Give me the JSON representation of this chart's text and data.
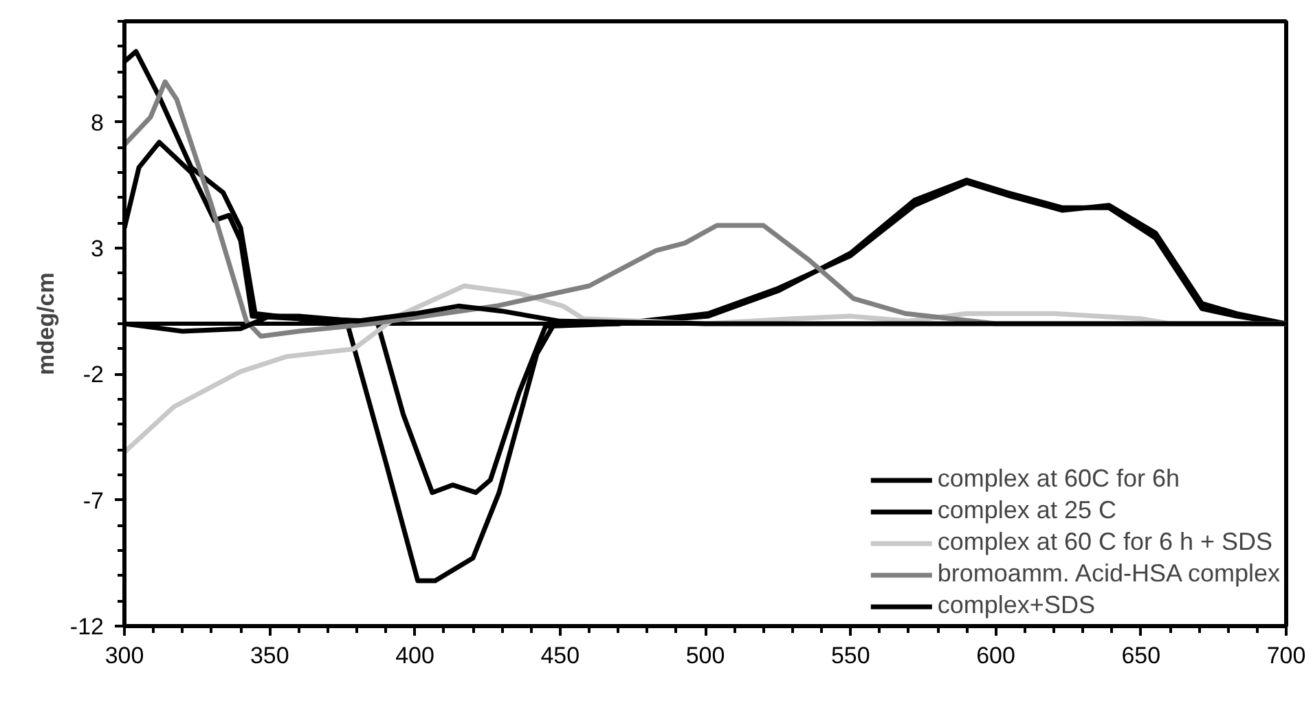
{
  "chart_data": {
    "type": "line",
    "ylabel": "mdeg/cm",
    "xlim": [
      300,
      700
    ],
    "ylim": [
      -12,
      12
    ],
    "xticks": [
      300,
      350,
      400,
      450,
      500,
      550,
      600,
      650,
      700
    ],
    "yticks": [
      8,
      3,
      -2,
      -7,
      -12
    ],
    "grid": false,
    "legend": "bottom right",
    "marker": "none",
    "line_style": "solid",
    "series": [
      {
        "name": "complex at 60C for 6h",
        "color": "#000000",
        "x": [
          300,
          304,
          312,
          323,
          334,
          340,
          345,
          360,
          377,
          390,
          401,
          407,
          420,
          429,
          442,
          448,
          470,
          501,
          525,
          550,
          572,
          590,
          604,
          623,
          639,
          655,
          671,
          683,
          700
        ],
        "values": [
          10.4,
          10.8,
          9.0,
          6.2,
          5.2,
          3.8,
          0.4,
          0.2,
          -0.1,
          -5.5,
          -10.2,
          -10.2,
          -9.3,
          -6.7,
          -1.2,
          0,
          0,
          0.3,
          1.3,
          2.8,
          4.9,
          5.7,
          5.2,
          4.6,
          4.6,
          3.4,
          0.6,
          0.3,
          0
        ]
      },
      {
        "name": "complex at 25 C",
        "color": "#000000",
        "x": [
          300,
          305,
          312,
          323,
          331,
          336,
          340,
          344,
          360,
          387,
          396,
          406,
          413,
          421,
          426,
          436,
          445,
          470,
          501,
          525,
          550,
          572,
          590,
          604,
          623,
          639,
          655,
          671,
          683,
          700
        ],
        "values": [
          3.8,
          6.2,
          7.2,
          6.0,
          4.1,
          4.3,
          3.3,
          0.3,
          0.2,
          0.1,
          -3.6,
          -6.7,
          -6.4,
          -6.7,
          -6.2,
          -2.7,
          -0.1,
          0,
          0.4,
          1.4,
          2.7,
          4.7,
          5.6,
          5.1,
          4.5,
          4.7,
          3.6,
          0.8,
          0.4,
          0
        ]
      },
      {
        "name": "complex at 60 C for 6 h + SDS",
        "color": "#c8c8c8",
        "x": [
          300,
          317,
          340,
          356,
          379,
          394,
          417,
          436,
          451,
          458,
          500,
          530,
          550,
          570,
          590,
          620,
          650,
          660,
          700
        ],
        "values": [
          -5.1,
          -3.3,
          -1.9,
          -1.3,
          -1.0,
          0.3,
          1.5,
          1.2,
          0.7,
          0.2,
          0,
          0.2,
          0.3,
          0.1,
          0.4,
          0.4,
          0.2,
          0,
          0
        ]
      },
      {
        "name": "bromoamm. Acid-HSA complex",
        "color": "#808080",
        "x": [
          300,
          309,
          314,
          318,
          330,
          342,
          347,
          360,
          385,
          428,
          460,
          483,
          493,
          504,
          520,
          536,
          551,
          569,
          600,
          700
        ],
        "values": [
          7.1,
          8.2,
          9.6,
          8.9,
          4.7,
          0.1,
          -0.5,
          -0.3,
          0,
          0.7,
          1.5,
          2.9,
          3.2,
          3.9,
          3.9,
          2.5,
          1.0,
          0.4,
          0,
          0
        ]
      },
      {
        "name": "complex+SDS",
        "color": "#000000",
        "x": [
          300,
          320,
          340,
          350,
          360,
          380,
          400,
          415,
          430,
          450,
          500,
          700
        ],
        "values": [
          0,
          -0.3,
          -0.2,
          0.3,
          0.3,
          0.1,
          0.4,
          0.7,
          0.5,
          0.1,
          0,
          0
        ]
      }
    ]
  }
}
